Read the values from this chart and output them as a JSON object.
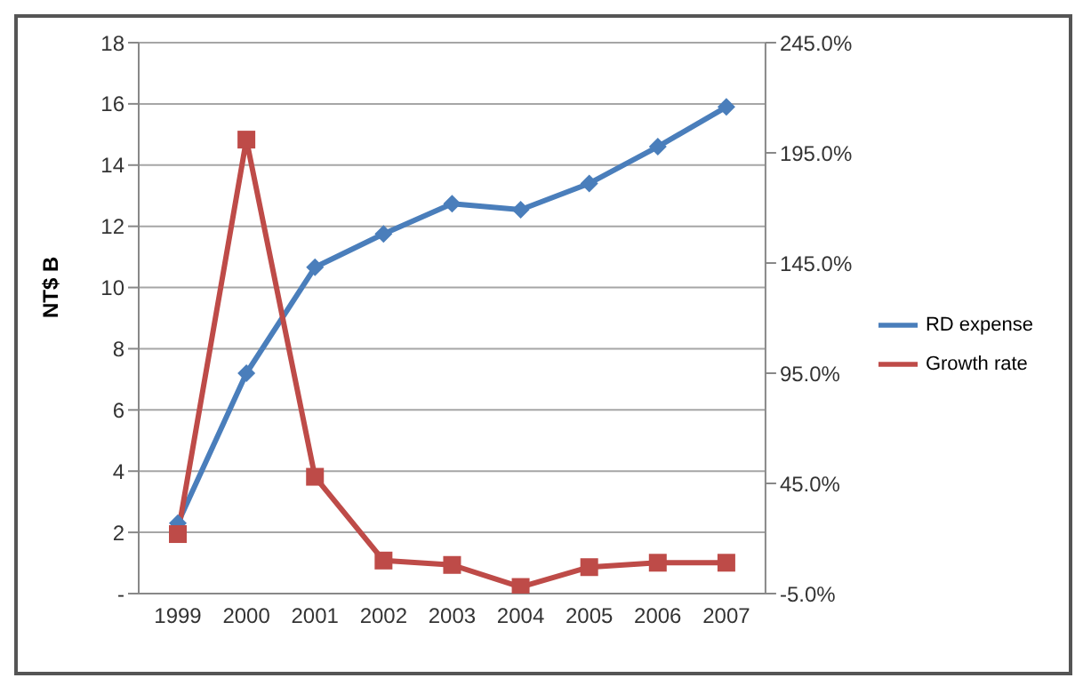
{
  "chart_data": {
    "type": "line",
    "ylabel": "NT$ B",
    "categories": [
      "1999",
      "2000",
      "2001",
      "2002",
      "2003",
      "2004",
      "2005",
      "2006",
      "2007"
    ],
    "series": [
      {
        "name": "RD expense",
        "color": "#4a7ebb",
        "marker": "diamond",
        "values": [
          2.3,
          7.2,
          10.66,
          11.75,
          12.74,
          12.54,
          13.4,
          14.6,
          15.9
        ]
      },
      {
        "name": "Growth rate",
        "color": "#be4b48",
        "marker": "square",
        "axis": "y2",
        "values": [
          22,
          201,
          48,
          10,
          8,
          -2,
          7,
          9,
          9
        ]
      }
    ],
    "ylim": [
      0,
      18
    ],
    "yticks": [
      {
        "value": 0,
        "label": "-"
      },
      2,
      4,
      6,
      8,
      10,
      12,
      14,
      16,
      18
    ],
    "y2lim": [
      -5,
      245
    ],
    "y2ticks": [
      {
        "value": -5,
        "label": "-5.0%"
      },
      {
        "value": 45,
        "label": "45.0%"
      },
      {
        "value": 95,
        "label": "95.0%"
      },
      {
        "value": 145,
        "label": "145.0%"
      },
      {
        "value": 195,
        "label": "195.0%"
      },
      {
        "value": 245,
        "label": "245.0%"
      }
    ],
    "grid": "y",
    "legend": "right"
  }
}
